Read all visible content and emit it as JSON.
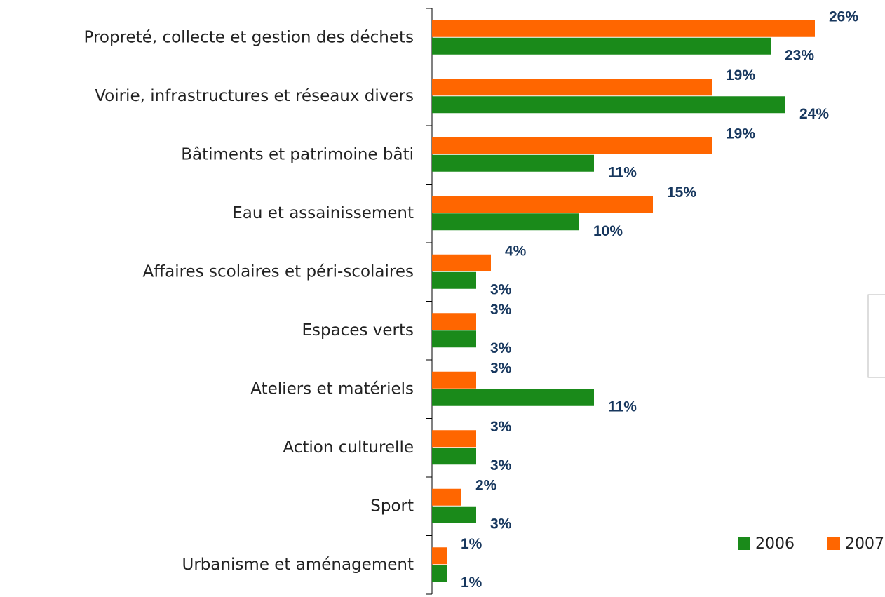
{
  "chart_data": {
    "type": "barh",
    "categories": [
      "Propreté, collecte et gestion des déchets",
      "Voirie, infrastructures et réseaux divers",
      "Bâtiments et patrimoine bâti",
      "Eau et assainissement",
      "Affaires scolaires et péri-scolaires",
      "Espaces verts",
      "Ateliers et matériels",
      "Action culturelle",
      "Sport",
      "Urbanisme et aménagement"
    ],
    "series": [
      {
        "name": "2006",
        "color": "#1a8a1a",
        "values": [
          23,
          24,
          11,
          10,
          3,
          3,
          11,
          3,
          3,
          1
        ],
        "value_labels": [
          "23%",
          "24%",
          "11%",
          "10%",
          "3%",
          "3%",
          "11%",
          "3%",
          "3%",
          "1%"
        ]
      },
      {
        "name": "2007",
        "color": "#ff6600",
        "values": [
          26,
          19,
          19,
          15,
          4,
          3,
          3,
          3,
          2,
          1
        ],
        "value_labels": [
          "26%",
          "19%",
          "19%",
          "15%",
          "4%",
          "3%",
          "3%",
          "3%",
          "2%",
          "1%"
        ]
      }
    ],
    "xlim": [
      0,
      30
    ],
    "legend": "bottom-right"
  }
}
